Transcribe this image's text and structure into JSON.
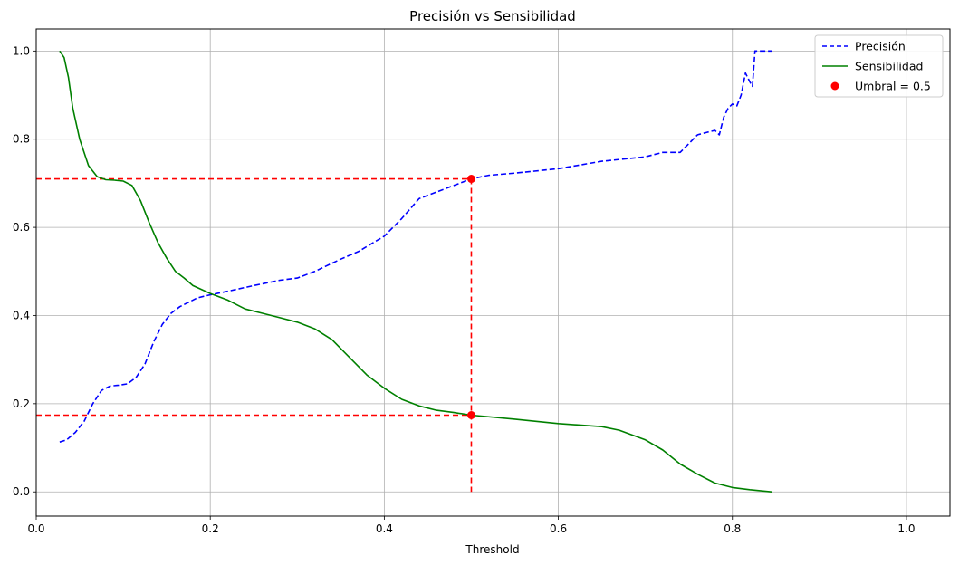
{
  "chart_data": {
    "type": "line",
    "title": "Precisión vs Sensibilidad",
    "xlabel": "Threshold",
    "ylabel": "",
    "xlim": [
      0.0,
      1.05
    ],
    "ylim": [
      -0.055,
      1.05
    ],
    "xticks": [
      0.0,
      0.2,
      0.4,
      0.6,
      0.8,
      1.0
    ],
    "xtick_labels": [
      "0.0",
      "0.2",
      "0.4",
      "0.6",
      "0.8",
      "1.0"
    ],
    "yticks": [
      0.0,
      0.2,
      0.4,
      0.6,
      0.8,
      1.0
    ],
    "ytick_labels": [
      "0.0",
      "0.2",
      "0.4",
      "0.6",
      "0.8",
      "1.0"
    ],
    "grid": true,
    "legend_position": "top-right",
    "series": [
      {
        "name": "Precisión",
        "color": "#0000ff",
        "style": "dashed",
        "x": [
          0.027,
          0.035,
          0.045,
          0.055,
          0.065,
          0.075,
          0.085,
          0.095,
          0.105,
          0.115,
          0.125,
          0.135,
          0.145,
          0.155,
          0.165,
          0.175,
          0.185,
          0.2,
          0.22,
          0.25,
          0.28,
          0.3,
          0.32,
          0.35,
          0.37,
          0.4,
          0.42,
          0.44,
          0.46,
          0.48,
          0.5,
          0.52,
          0.55,
          0.6,
          0.65,
          0.7,
          0.72,
          0.73,
          0.74,
          0.75,
          0.76,
          0.77,
          0.78,
          0.785,
          0.79,
          0.795,
          0.8,
          0.805,
          0.81,
          0.815,
          0.82,
          0.823,
          0.826,
          0.83,
          0.845
        ],
        "y": [
          0.113,
          0.118,
          0.135,
          0.16,
          0.2,
          0.23,
          0.24,
          0.242,
          0.245,
          0.26,
          0.29,
          0.34,
          0.38,
          0.405,
          0.42,
          0.43,
          0.44,
          0.447,
          0.455,
          0.468,
          0.48,
          0.485,
          0.5,
          0.528,
          0.545,
          0.58,
          0.62,
          0.665,
          0.68,
          0.695,
          0.71,
          0.718,
          0.723,
          0.733,
          0.75,
          0.76,
          0.77,
          0.77,
          0.77,
          0.79,
          0.81,
          0.815,
          0.82,
          0.81,
          0.85,
          0.87,
          0.88,
          0.875,
          0.9,
          0.95,
          0.93,
          0.92,
          1.0,
          1.0,
          1.0
        ]
      },
      {
        "name": "Sensibilidad",
        "color": "#008000",
        "style": "solid",
        "x": [
          0.027,
          0.032,
          0.037,
          0.042,
          0.05,
          0.06,
          0.07,
          0.08,
          0.09,
          0.1,
          0.11,
          0.12,
          0.13,
          0.14,
          0.15,
          0.16,
          0.17,
          0.18,
          0.2,
          0.22,
          0.24,
          0.26,
          0.28,
          0.3,
          0.32,
          0.34,
          0.36,
          0.38,
          0.4,
          0.42,
          0.44,
          0.46,
          0.48,
          0.5,
          0.55,
          0.6,
          0.65,
          0.67,
          0.7,
          0.72,
          0.74,
          0.76,
          0.78,
          0.8,
          0.82,
          0.845
        ],
        "y": [
          1.0,
          0.985,
          0.94,
          0.87,
          0.8,
          0.74,
          0.715,
          0.708,
          0.707,
          0.705,
          0.695,
          0.66,
          0.61,
          0.565,
          0.53,
          0.5,
          0.485,
          0.468,
          0.45,
          0.435,
          0.415,
          0.405,
          0.395,
          0.385,
          0.37,
          0.345,
          0.305,
          0.265,
          0.235,
          0.21,
          0.195,
          0.185,
          0.18,
          0.174,
          0.165,
          0.155,
          0.148,
          0.14,
          0.118,
          0.095,
          0.063,
          0.04,
          0.02,
          0.01,
          0.005,
          0.0
        ]
      }
    ],
    "threshold_marker": {
      "name": "Umbral = 0.5",
      "x": 0.5,
      "precision": 0.71,
      "recall": 0.174,
      "color": "#ff0000"
    }
  }
}
